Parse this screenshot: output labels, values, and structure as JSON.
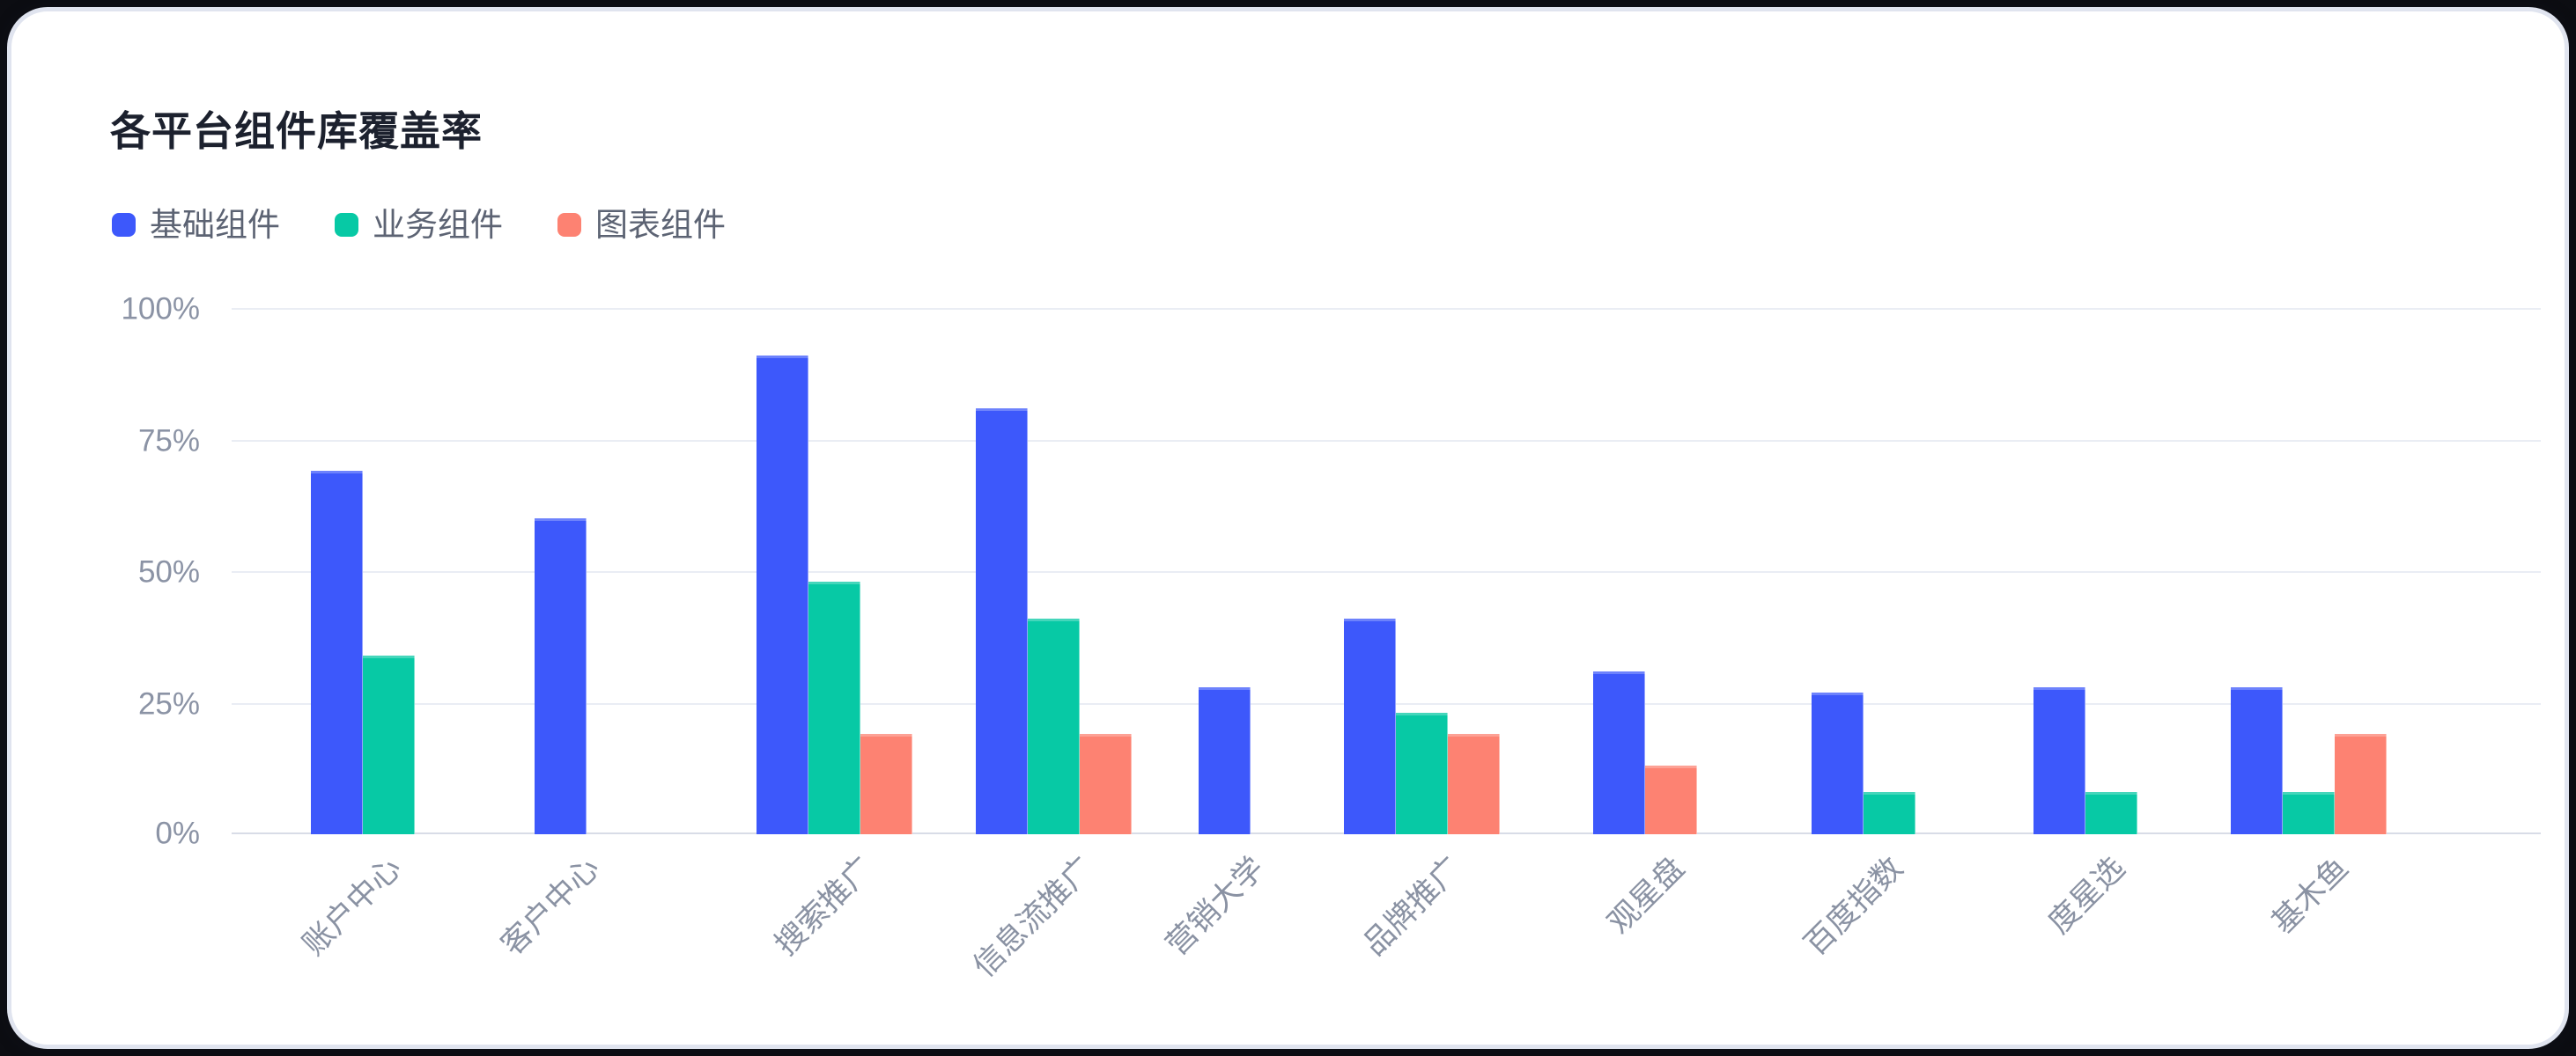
{
  "card": {
    "background": "#ffffff",
    "border_color": "#e0e4ef",
    "page_background": "#0c0d12"
  },
  "ui_colors": {
    "title_text": "#1c212e",
    "legend_text": "#5c6373",
    "axis_text": "#8b93a5",
    "gridline": "#eaedf4",
    "baseline": "#d8dce7"
  },
  "chart_data": {
    "type": "bar",
    "title": "各平台组件库覆盖率",
    "categories": [
      "账户中心",
      "客户中心",
      "搜索推广",
      "信息流推广",
      "营销大学",
      "品牌推广",
      "观星盘",
      "百度指数",
      "度星选",
      "基木鱼"
    ],
    "series": [
      {
        "name": "基础组件",
        "color": "#3D58FB",
        "values": [
          69,
          60,
          91,
          81,
          28,
          41,
          31,
          27,
          28,
          28
        ]
      },
      {
        "name": "业务组件",
        "color": "#07C9A5",
        "values": [
          34,
          null,
          48,
          41,
          null,
          23,
          null,
          8,
          8,
          8
        ]
      },
      {
        "name": "图表组件",
        "color": "#FD8272",
        "values": [
          null,
          null,
          19,
          19,
          null,
          19,
          13,
          null,
          null,
          19
        ]
      }
    ],
    "xlabel": "",
    "ylabel": "",
    "ylim": [
      0,
      100
    ],
    "y_ticks": [
      "100%",
      "75%",
      "50%",
      "25%",
      "0%"
    ],
    "y_tick_unit": "%",
    "grid": true,
    "legend_position": "top-left",
    "x_label_rotation_deg": 45
  }
}
